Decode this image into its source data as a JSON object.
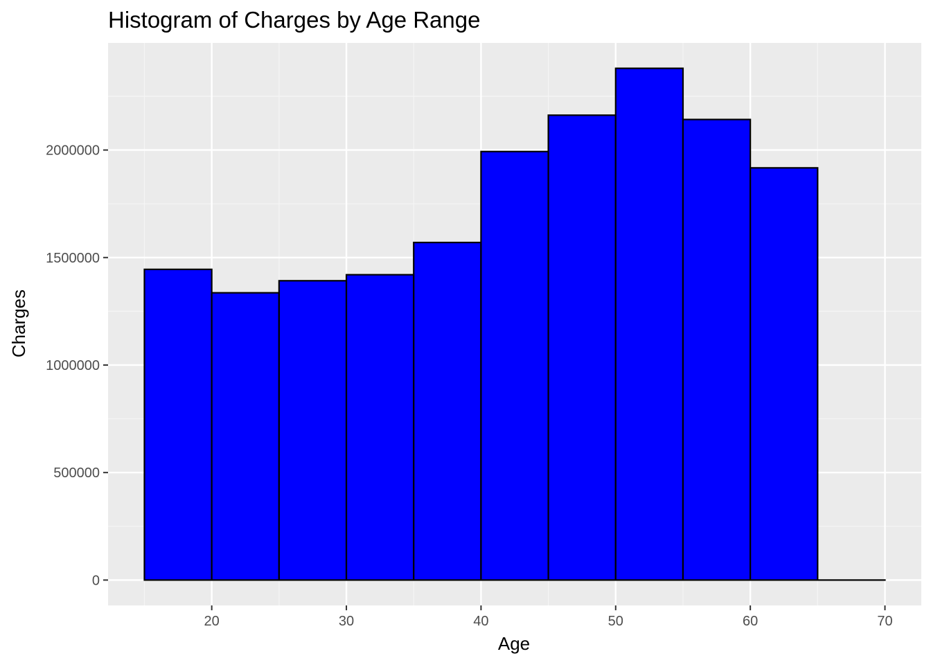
{
  "chart_data": {
    "type": "bar",
    "title": "Histogram of Charges by Age Range",
    "xlabel": "Age",
    "ylabel": "Charges",
    "bins": [
      {
        "start": 15,
        "end": 20,
        "value": 1445000
      },
      {
        "start": 20,
        "end": 25,
        "value": 1336000
      },
      {
        "start": 25,
        "end": 30,
        "value": 1392000
      },
      {
        "start": 30,
        "end": 35,
        "value": 1420000
      },
      {
        "start": 35,
        "end": 40,
        "value": 1570000
      },
      {
        "start": 40,
        "end": 45,
        "value": 1993000
      },
      {
        "start": 45,
        "end": 50,
        "value": 2162000
      },
      {
        "start": 50,
        "end": 55,
        "value": 2380000
      },
      {
        "start": 55,
        "end": 60,
        "value": 2142000
      },
      {
        "start": 60,
        "end": 65,
        "value": 1917000
      },
      {
        "start": 65,
        "end": 70,
        "value": 0
      }
    ],
    "xlim": [
      12.3,
      72.7
    ],
    "ylim": [
      -118000,
      2498000
    ],
    "x_ticks": [
      20,
      30,
      40,
      50,
      60,
      70
    ],
    "x_tick_labels": [
      "20",
      "30",
      "40",
      "50",
      "60",
      "70"
    ],
    "y_ticks": [
      0,
      500000,
      1000000,
      1500000,
      2000000
    ],
    "y_tick_labels": [
      "0",
      "500000",
      "1000000",
      "1500000",
      "2000000"
    ],
    "grid": true,
    "colors": {
      "bar_fill": "#0000ff",
      "bar_outline": "#000000",
      "panel_background": "#ebebeb",
      "grid_major": "#ffffff",
      "grid_minor": "#f5f5f5"
    }
  }
}
